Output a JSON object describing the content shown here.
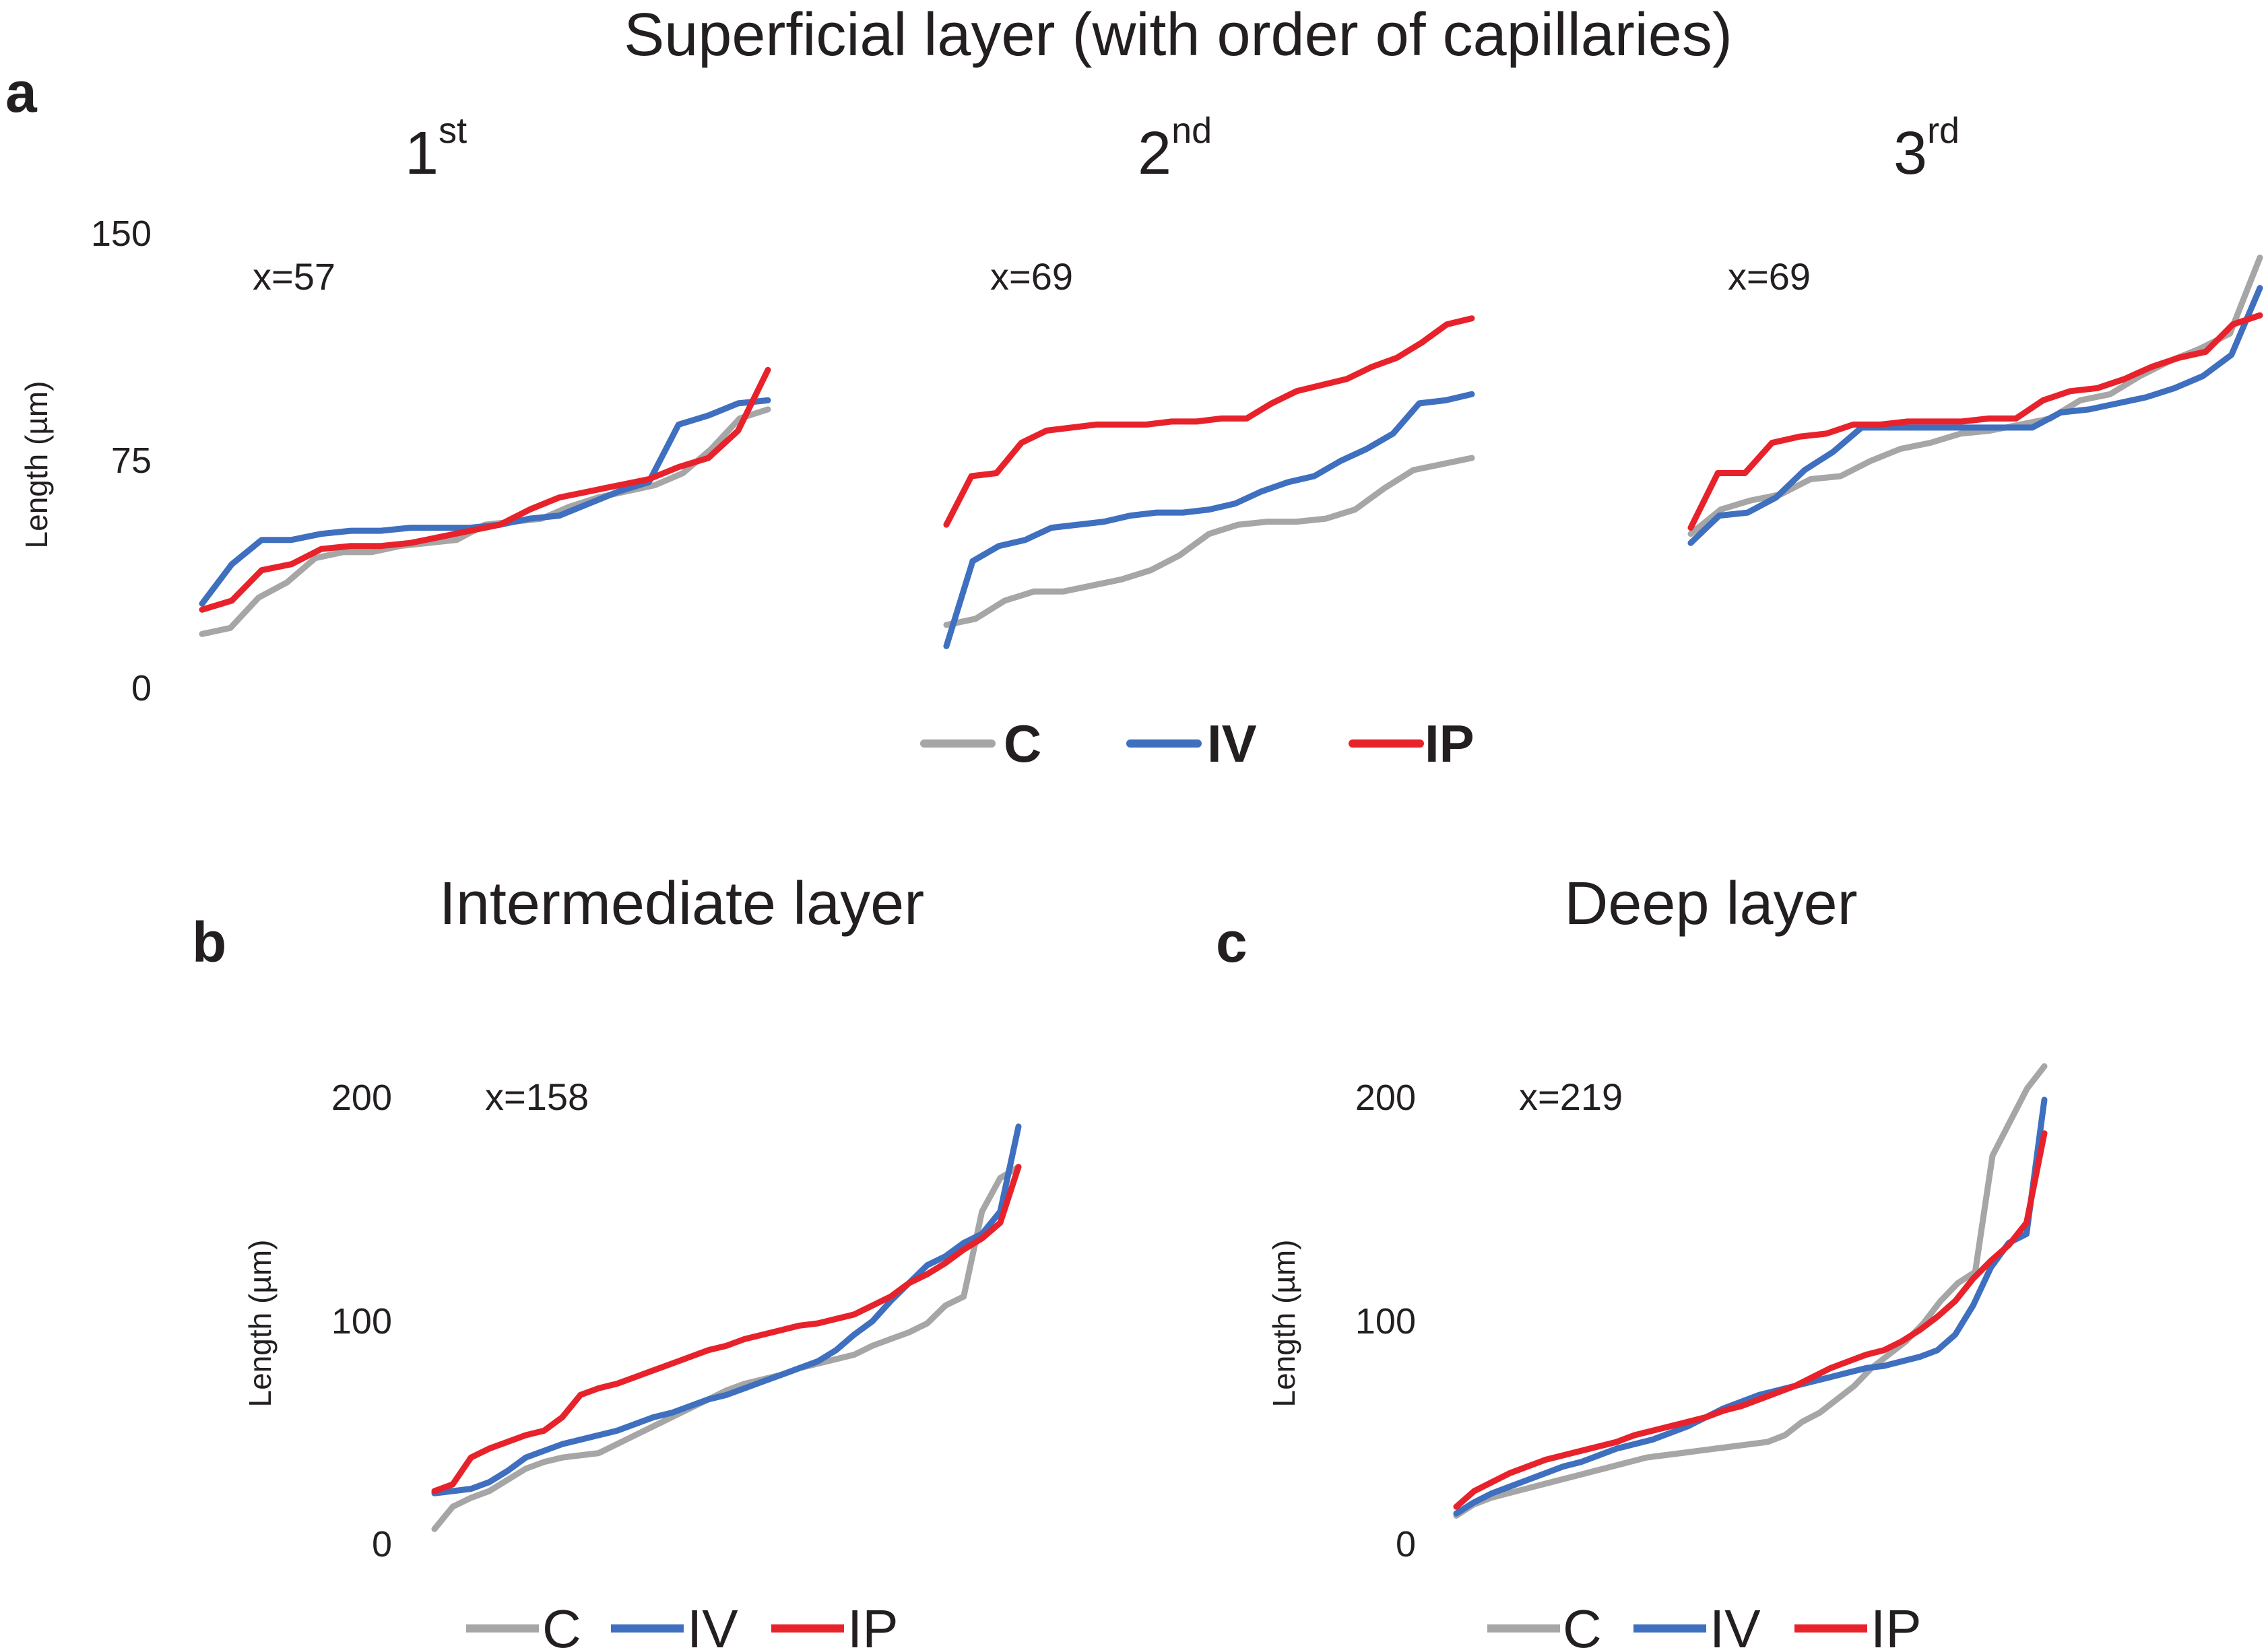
{
  "figure_title": "Superficial layer (with order of capillaries)",
  "y_axis_label": "Length (µm)",
  "colors": {
    "C": "#a6a6a6",
    "IV": "#3f6fbf",
    "IP": "#e8222b"
  },
  "panels": {
    "a": {
      "letter": "a"
    },
    "b": {
      "letter": "b",
      "title": "Intermediate layer"
    },
    "c": {
      "letter": "c",
      "title": "Deep layer"
    }
  },
  "subplots": {
    "a1": {
      "order_base": "1",
      "order_sup": "st",
      "note": "x=57"
    },
    "a2": {
      "order_base": "2",
      "order_sup": "nd",
      "note": "x=69"
    },
    "a3": {
      "order_base": "3",
      "order_sup": "rd",
      "note": "x=69"
    }
  },
  "legend_a": [
    "C",
    "IV",
    "IP"
  ],
  "legend_b": [
    "C",
    "IV",
    "IP"
  ],
  "legend_c": [
    "C",
    "IV",
    "IP"
  ],
  "chart_data": [
    {
      "id": "a1",
      "type": "line",
      "title": "1st",
      "ylabel": "Length (µm)",
      "xlabel": "",
      "ylim": [
        0,
        150
      ],
      "yticks": [
        "0",
        "75",
        "150"
      ],
      "annotation": "x=57",
      "series": [
        {
          "name": "C",
          "values": [
            19,
            21,
            31,
            36,
            44,
            46,
            46,
            48,
            49,
            50,
            55,
            56,
            57,
            61,
            64,
            66,
            68,
            72,
            80,
            90,
            93
          ]
        },
        {
          "name": "IV",
          "values": [
            29,
            42,
            50,
            50,
            52,
            53,
            53,
            54,
            54,
            54,
            55,
            57,
            58,
            62,
            66,
            69,
            88,
            91,
            95,
            96
          ]
        },
        {
          "name": "IP",
          "values": [
            27,
            30,
            40,
            42,
            47,
            48,
            48,
            49,
            51,
            53,
            55,
            60,
            64,
            66,
            68,
            70,
            74,
            77,
            86,
            106
          ]
        }
      ]
    },
    {
      "id": "a2",
      "type": "line",
      "title": "2nd",
      "ylabel": "",
      "xlabel": "",
      "ylim": [
        0,
        150
      ],
      "yticks": [],
      "annotation": "x=69",
      "series": [
        {
          "name": "C",
          "values": [
            22,
            24,
            30,
            33,
            33,
            35,
            37,
            40,
            45,
            52,
            55,
            56,
            56,
            57,
            60,
            67,
            73,
            75,
            77
          ]
        },
        {
          "name": "IV",
          "values": [
            15,
            43,
            48,
            50,
            54,
            55,
            56,
            58,
            59,
            59,
            60,
            62,
            66,
            69,
            71,
            76,
            80,
            85,
            95,
            96,
            98
          ]
        },
        {
          "name": "IP",
          "values": [
            55,
            71,
            72,
            82,
            86,
            87,
            88,
            88,
            88,
            89,
            89,
            90,
            90,
            95,
            99,
            101,
            103,
            107,
            110,
            115,
            121,
            123
          ]
        }
      ]
    },
    {
      "id": "a3",
      "type": "line",
      "title": "3rd",
      "ylabel": "",
      "xlabel": "",
      "ylim": [
        0,
        150
      ],
      "yticks": [],
      "annotation": "x=69",
      "series": [
        {
          "name": "C",
          "values": [
            52,
            60,
            63,
            65,
            70,
            71,
            76,
            80,
            82,
            85,
            86,
            88,
            90,
            96,
            98,
            104,
            109,
            113,
            118,
            143
          ]
        },
        {
          "name": "IV",
          "values": [
            49,
            58,
            59,
            64,
            73,
            79,
            87,
            87,
            87,
            87,
            87,
            87,
            87,
            92,
            93,
            95,
            97,
            100,
            104,
            111,
            133
          ]
        },
        {
          "name": "IP",
          "values": [
            54,
            72,
            72,
            82,
            84,
            85,
            88,
            88,
            89,
            89,
            89,
            90,
            90,
            96,
            99,
            100,
            103,
            107,
            110,
            112,
            121,
            124
          ]
        }
      ]
    },
    {
      "id": "b",
      "type": "line",
      "title": "Intermediate layer",
      "ylabel": "Length (µm)",
      "xlabel": "",
      "ylim": [
        0,
        200
      ],
      "yticks": [
        "0",
        "100",
        "200"
      ],
      "annotation": "x=158",
      "series": [
        {
          "name": "C",
          "values": [
            8,
            18,
            22,
            25,
            30,
            35,
            38,
            40,
            41,
            42,
            46,
            50,
            54,
            58,
            62,
            66,
            70,
            73,
            75,
            77,
            80,
            82,
            84,
            86,
            90,
            93,
            96,
            100,
            108,
            112,
            150,
            165,
            170
          ]
        },
        {
          "name": "IV",
          "values": [
            24,
            25,
            26,
            29,
            34,
            40,
            43,
            46,
            48,
            50,
            52,
            55,
            58,
            60,
            63,
            66,
            68,
            71,
            74,
            77,
            80,
            83,
            88,
            95,
            101,
            110,
            118,
            126,
            130,
            136,
            140,
            150,
            188
          ]
        },
        {
          "name": "IP",
          "values": [
            25,
            28,
            40,
            44,
            47,
            50,
            52,
            58,
            68,
            71,
            73,
            76,
            79,
            82,
            85,
            88,
            90,
            93,
            95,
            97,
            99,
            100,
            102,
            104,
            108,
            112,
            118,
            122,
            127,
            133,
            138,
            145,
            170
          ]
        }
      ]
    },
    {
      "id": "c",
      "type": "line",
      "title": "Deep layer",
      "ylabel": "Length (µm)",
      "xlabel": "",
      "ylim": [
        0,
        200
      ],
      "yticks": [
        "0",
        "100",
        "200"
      ],
      "annotation": "x=219",
      "series": [
        {
          "name": "C",
          "values": [
            14,
            19,
            22,
            24,
            26,
            28,
            30,
            32,
            34,
            36,
            38,
            40,
            41,
            42,
            43,
            44,
            45,
            46,
            47,
            50,
            56,
            60,
            66,
            72,
            80,
            86,
            92,
            100,
            110,
            118,
            123,
            175,
            190,
            205,
            215
          ]
        },
        {
          "name": "IV",
          "values": [
            15,
            20,
            24,
            27,
            30,
            33,
            36,
            38,
            41,
            44,
            46,
            48,
            51,
            54,
            58,
            62,
            65,
            68,
            70,
            72,
            74,
            76,
            78,
            80,
            81,
            83,
            85,
            88,
            95,
            108,
            125,
            136,
            140,
            200
          ]
        },
        {
          "name": "IP",
          "values": [
            18,
            25,
            29,
            33,
            36,
            39,
            41,
            43,
            45,
            47,
            50,
            52,
            54,
            56,
            58,
            61,
            63,
            66,
            69,
            72,
            76,
            80,
            83,
            86,
            88,
            92,
            97,
            103,
            110,
            120,
            128,
            135,
            145,
            185
          ]
        }
      ]
    }
  ]
}
